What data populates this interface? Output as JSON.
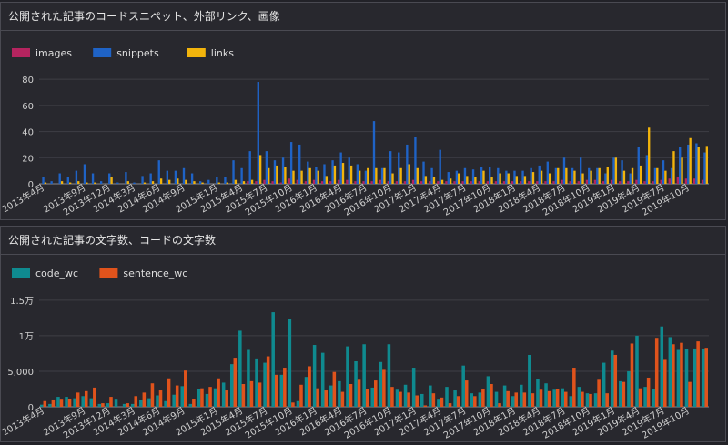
{
  "panels": [
    {
      "title": "公開された記事のコードスニペット、外部リンク、画像",
      "chart_data": {
        "type": "bar",
        "legend_position": "top-left",
        "grid": true,
        "ylim": [
          0,
          85
        ],
        "yticks": [
          {
            "value": 0,
            "label": "0"
          },
          {
            "value": 20,
            "label": "20"
          },
          {
            "value": 40,
            "label": "40"
          },
          {
            "value": 60,
            "label": "60"
          },
          {
            "value": 80,
            "label": "80"
          }
        ],
        "categories": [
          "2013年4月",
          "2013年5月",
          "2013年6月",
          "2013年7月",
          "2013年8月",
          "2013年9月",
          "2013年10月",
          "2013年11月",
          "2013年12月",
          "2014年1月",
          "2014年2月",
          "2014年3月",
          "2014年4月",
          "2014年5月",
          "2014年6月",
          "2014年7月",
          "2014年8月",
          "2014年9月",
          "2014年10月",
          "2014年11月",
          "2014年12月",
          "2015年1月",
          "2015年2月",
          "2015年3月",
          "2015年4月",
          "2015年5月",
          "2015年6月",
          "2015年7月",
          "2015年8月",
          "2015年9月",
          "2015年10月",
          "2015年11月",
          "2015年12月",
          "2016年1月",
          "2016年2月",
          "2016年3月",
          "2016年4月",
          "2016年5月",
          "2016年6月",
          "2016年7月",
          "2016年8月",
          "2016年9月",
          "2016年10月",
          "2016年11月",
          "2016年12月",
          "2017年1月",
          "2017年2月",
          "2017年3月",
          "2017年4月",
          "2017年5月",
          "2017年6月",
          "2017年7月",
          "2017年8月",
          "2017年9月",
          "2017年10月",
          "2017年11月",
          "2017年12月",
          "2018年1月",
          "2018年2月",
          "2018年3月",
          "2018年4月",
          "2018年5月",
          "2018年6月",
          "2018年7月",
          "2018年8月",
          "2018年9月",
          "2018年10月",
          "2018年11月",
          "2018年12月",
          "2019年1月",
          "2019年2月",
          "2019年3月",
          "2019年4月",
          "2019年5月",
          "2019年6月",
          "2019年7月",
          "2019年8月",
          "2019年9月",
          "2019年10月",
          "2019年11月",
          "2019年12月"
        ],
        "xtick_labels": [
          "2013年4月",
          "2013年9月",
          "2013年12月",
          "2014年3月",
          "2014年6月",
          "2014年9月",
          "2015年1月",
          "2015年4月",
          "2015年7月",
          "2015年10月",
          "2016年1月",
          "2016年4月",
          "2016年7月",
          "2016年10月",
          "2017年1月",
          "2017年4月",
          "2017年7月",
          "2017年10月",
          "2018年1月",
          "2018年4月",
          "2018年7月",
          "2018年10月",
          "2019年1月",
          "2019年4月",
          "2019年7月",
          "2019年10月"
        ],
        "series": [
          {
            "name": "images",
            "color": "#b5245f",
            "values": [
              0,
              0,
              0,
              0,
              0,
              0,
              0,
              0,
              0,
              0,
              0,
              0,
              0,
              0,
              0,
              0,
              0,
              0,
              0,
              0,
              0,
              0,
              0,
              0,
              0,
              2,
              2,
              3,
              2,
              1,
              4,
              3,
              2,
              3,
              2,
              2,
              3,
              3,
              2,
              2,
              2,
              3,
              2,
              2,
              2,
              3,
              2,
              2,
              2,
              2,
              2,
              2,
              2,
              2,
              2,
              2,
              2,
              2,
              2,
              2,
              2,
              2,
              2,
              3,
              2,
              2,
              3,
              3,
              2,
              3,
              2,
              2,
              3,
              2,
              2,
              3,
              4,
              5,
              4,
              4,
              3
            ]
          },
          {
            "name": "snippets",
            "color": "#1f63c6",
            "values": [
              5,
              2,
              8,
              5,
              10,
              15,
              8,
              2,
              8,
              1,
              9,
              1,
              6,
              8,
              18,
              10,
              10,
              12,
              8,
              2,
              3,
              5,
              5,
              18,
              12,
              25,
              78,
              25,
              18,
              20,
              32,
              30,
              17,
              13,
              15,
              18,
              24,
              20,
              15,
              10,
              48,
              12,
              25,
              24,
              30,
              36,
              17,
              12,
              26,
              9,
              10,
              12,
              11,
              13,
              13,
              12,
              10,
              10,
              10,
              12,
              14,
              17,
              12,
              20,
              12,
              20,
              12,
              12,
              8,
              20,
              18,
              8,
              28,
              22,
              12,
              18,
              12,
              28,
              30,
              31,
              24
            ]
          },
          {
            "name": "links",
            "color": "#f2b40c",
            "values": [
              1,
              0,
              2,
              1,
              2,
              1,
              1,
              0,
              5,
              0,
              2,
              0,
              1,
              2,
              4,
              3,
              4,
              3,
              2,
              1,
              0,
              1,
              1,
              3,
              2,
              3,
              22,
              12,
              14,
              13,
              10,
              10,
              12,
              10,
              6,
              14,
              16,
              14,
              10,
              12,
              12,
              12,
              8,
              12,
              15,
              12,
              6,
              5,
              3,
              4,
              8,
              6,
              5,
              10,
              5,
              8,
              8,
              6,
              6,
              9,
              10,
              8,
              12,
              12,
              10,
              8,
              10,
              12,
              13,
              20,
              10,
              12,
              14,
              43,
              12,
              10,
              25,
              20,
              35,
              28,
              29
            ]
          }
        ]
      }
    },
    {
      "title": "公開された記事の文字数、コードの文字数",
      "chart_data": {
        "type": "bar",
        "legend_position": "top-left",
        "grid": true,
        "ylim": [
          0,
          16000
        ],
        "yticks": [
          {
            "value": 0,
            "label": "0"
          },
          {
            "value": 5000,
            "label": "5,000"
          },
          {
            "value": 10000,
            "label": "1万"
          },
          {
            "value": 15000,
            "label": "1.5万"
          }
        ],
        "categories": [
          "2013年4月",
          "2013年5月",
          "2013年6月",
          "2013年7月",
          "2013年8月",
          "2013年9月",
          "2013年10月",
          "2013年11月",
          "2013年12月",
          "2014年1月",
          "2014年2月",
          "2014年3月",
          "2014年4月",
          "2014年5月",
          "2014年6月",
          "2014年7月",
          "2014年8月",
          "2014年9月",
          "2014年10月",
          "2014年11月",
          "2014年12月",
          "2015年1月",
          "2015年2月",
          "2015年3月",
          "2015年4月",
          "2015年5月",
          "2015年6月",
          "2015年7月",
          "2015年8月",
          "2015年9月",
          "2015年10月",
          "2015年11月",
          "2015年12月",
          "2016年1月",
          "2016年2月",
          "2016年3月",
          "2016年4月",
          "2016年5月",
          "2016年6月",
          "2016年7月",
          "2016年8月",
          "2016年9月",
          "2016年10月",
          "2016年11月",
          "2016年12月",
          "2017年1月",
          "2017年2月",
          "2017年3月",
          "2017年4月",
          "2017年5月",
          "2017年6月",
          "2017年7月",
          "2017年8月",
          "2017年9月",
          "2017年10月",
          "2017年11月",
          "2017年12月",
          "2018年1月",
          "2018年2月",
          "2018年3月",
          "2018年4月",
          "2018年5月",
          "2018年6月",
          "2018年7月",
          "2018年8月",
          "2018年9月",
          "2018年10月",
          "2018年11月",
          "2018年12月",
          "2019年1月",
          "2019年2月",
          "2019年3月",
          "2019年4月",
          "2019年5月",
          "2019年6月",
          "2019年7月",
          "2019年8月",
          "2019年9月",
          "2019年10月",
          "2019年11月",
          "2019年12月"
        ],
        "xtick_labels": [
          "2013年4月",
          "2013年9月",
          "2013年12月",
          "2014年3月",
          "2014年6月",
          "2014年9月",
          "2015年1月",
          "2015年4月",
          "2015年7月",
          "2015年10月",
          "2016年1月",
          "2016年4月",
          "2016年7月",
          "2016年10月",
          "2017年1月",
          "2017年4月",
          "2017年7月",
          "2017年10月",
          "2018年1月",
          "2018年4月",
          "2018年7月",
          "2018年10月",
          "2019年1月",
          "2019年4月",
          "2019年7月",
          "2019年10月"
        ],
        "series": [
          {
            "name": "code_wc",
            "color": "#0f8a8f",
            "values": [
              300,
              400,
              1400,
              1400,
              1200,
              1500,
              1200,
              400,
              500,
              1000,
              400,
              400,
              900,
              1200,
              1600,
              800,
              1700,
              2900,
              400,
              2500,
              1800,
              2600,
              3400,
              6000,
              10700,
              8000,
              6800,
              6200,
              13300,
              4500,
              12400,
              800,
              4200,
              8700,
              7600,
              3000,
              3600,
              8500,
              6400,
              8800,
              2700,
              6300,
              8800,
              2400,
              3100,
              5500,
              1800,
              3000,
              1000,
              2800,
              2300,
              5800,
              1900,
              2000,
              4300,
              2100,
              3000,
              1500,
              3100,
              7300,
              3900,
              3300,
              2400,
              2600,
              1500,
              2800,
              1900,
              1900,
              6200,
              7900,
              3600,
              5000,
              10000,
              2800,
              2500,
              11300,
              9800,
              8000,
              8100,
              8200,
              8200
            ]
          },
          {
            "name": "sentence_wc",
            "color": "#e0531c",
            "values": [
              800,
              900,
              1000,
              1100,
              2000,
              2200,
              2700,
              500,
              1400,
              0,
              500,
              1500,
              2000,
              3300,
              2300,
              4000,
              3000,
              5100,
              1100,
              2600,
              2800,
              4000,
              2300,
              6900,
              3200,
              3600,
              3400,
              7100,
              4500,
              5500,
              600,
              3100,
              5700,
              2600,
              2300,
              4900,
              2100,
              3200,
              3800,
              2500,
              3700,
              5200,
              2800,
              2100,
              2000,
              1600,
              200,
              1900,
              1300,
              500,
              1500,
              3700,
              1500,
              2500,
              3200,
              500,
              2200,
              2000,
              2000,
              1900,
              2400,
              2200,
              2500,
              2100,
              5500,
              2100,
              1800,
              3800,
              1900,
              7300,
              3500,
              8900,
              2600,
              4100,
              9700,
              6600,
              8800,
              9000,
              3500,
              9200,
              8300
            ]
          }
        ]
      }
    }
  ]
}
